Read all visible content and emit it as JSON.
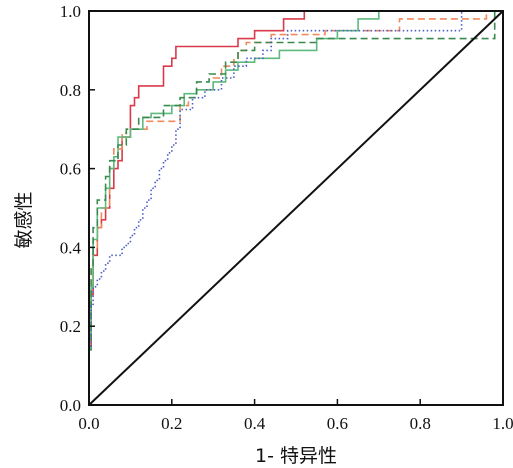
{
  "chart_data": {
    "type": "line",
    "title": "",
    "xlabel": "1- 特异性",
    "ylabel": "敏感性",
    "xlim": [
      0,
      1
    ],
    "ylim": [
      0,
      1
    ],
    "xticks": [
      "0.0",
      "0.2",
      "0.4",
      "0.6",
      "0.8",
      "1.0"
    ],
    "yticks": [
      "0.0",
      "0.2",
      "0.4",
      "0.6",
      "0.8",
      "1.0"
    ],
    "grid": false,
    "legend": "none",
    "series": [
      {
        "color": "#d93a4a",
        "style": "solid",
        "points": [
          [
            0,
            0
          ],
          [
            0,
            0.15
          ],
          [
            0.005,
            0.15
          ],
          [
            0.005,
            0.28
          ],
          [
            0.01,
            0.28
          ],
          [
            0.01,
            0.38
          ],
          [
            0.02,
            0.38
          ],
          [
            0.02,
            0.45
          ],
          [
            0.03,
            0.45
          ],
          [
            0.03,
            0.47
          ],
          [
            0.04,
            0.47
          ],
          [
            0.04,
            0.5
          ],
          [
            0.05,
            0.5
          ],
          [
            0.05,
            0.55
          ],
          [
            0.06,
            0.55
          ],
          [
            0.06,
            0.6
          ],
          [
            0.07,
            0.6
          ],
          [
            0.07,
            0.62
          ],
          [
            0.08,
            0.62
          ],
          [
            0.08,
            0.68
          ],
          [
            0.1,
            0.68
          ],
          [
            0.1,
            0.72
          ],
          [
            0.1,
            0.76
          ],
          [
            0.11,
            0.76
          ],
          [
            0.11,
            0.78
          ],
          [
            0.12,
            0.78
          ],
          [
            0.12,
            0.81
          ],
          [
            0.18,
            0.81
          ],
          [
            0.18,
            0.86
          ],
          [
            0.2,
            0.86
          ],
          [
            0.2,
            0.88
          ],
          [
            0.21,
            0.88
          ],
          [
            0.21,
            0.91
          ],
          [
            0.36,
            0.91
          ],
          [
            0.36,
            0.93
          ],
          [
            0.4,
            0.93
          ],
          [
            0.4,
            0.95
          ],
          [
            0.47,
            0.95
          ],
          [
            0.47,
            0.98
          ],
          [
            0.52,
            0.98
          ],
          [
            0.52,
            1
          ],
          [
            1,
            1
          ]
        ]
      },
      {
        "color": "#f08a5d",
        "style": "dashed",
        "points": [
          [
            0,
            0
          ],
          [
            0,
            0.16
          ],
          [
            0.005,
            0.16
          ],
          [
            0.005,
            0.3
          ],
          [
            0.01,
            0.3
          ],
          [
            0.01,
            0.4
          ],
          [
            0.02,
            0.4
          ],
          [
            0.02,
            0.45
          ],
          [
            0.03,
            0.45
          ],
          [
            0.03,
            0.5
          ],
          [
            0.05,
            0.5
          ],
          [
            0.05,
            0.6
          ],
          [
            0.06,
            0.6
          ],
          [
            0.06,
            0.65
          ],
          [
            0.08,
            0.65
          ],
          [
            0.08,
            0.69
          ],
          [
            0.09,
            0.69
          ],
          [
            0.09,
            0.7
          ],
          [
            0.14,
            0.7
          ],
          [
            0.14,
            0.72
          ],
          [
            0.22,
            0.72
          ],
          [
            0.22,
            0.76
          ],
          [
            0.24,
            0.76
          ],
          [
            0.24,
            0.78
          ],
          [
            0.26,
            0.78
          ],
          [
            0.26,
            0.8
          ],
          [
            0.3,
            0.8
          ],
          [
            0.3,
            0.83
          ],
          [
            0.32,
            0.83
          ],
          [
            0.32,
            0.86
          ],
          [
            0.35,
            0.86
          ],
          [
            0.35,
            0.88
          ],
          [
            0.36,
            0.88
          ],
          [
            0.36,
            0.9
          ],
          [
            0.38,
            0.9
          ],
          [
            0.38,
            0.92
          ],
          [
            0.44,
            0.92
          ],
          [
            0.44,
            0.94
          ],
          [
            0.57,
            0.94
          ],
          [
            0.57,
            0.95
          ],
          [
            0.75,
            0.95
          ],
          [
            0.75,
            0.98
          ],
          [
            0.96,
            0.98
          ],
          [
            0.96,
            1
          ],
          [
            1,
            1
          ]
        ]
      },
      {
        "color": "#5fba7d",
        "style": "solid",
        "points": [
          [
            0,
            0
          ],
          [
            0,
            0.18
          ],
          [
            0.005,
            0.18
          ],
          [
            0.005,
            0.3
          ],
          [
            0.01,
            0.3
          ],
          [
            0.01,
            0.42
          ],
          [
            0.02,
            0.42
          ],
          [
            0.02,
            0.5
          ],
          [
            0.04,
            0.5
          ],
          [
            0.04,
            0.55
          ],
          [
            0.05,
            0.55
          ],
          [
            0.05,
            0.6
          ],
          [
            0.06,
            0.6
          ],
          [
            0.06,
            0.63
          ],
          [
            0.07,
            0.63
          ],
          [
            0.07,
            0.68
          ],
          [
            0.1,
            0.68
          ],
          [
            0.1,
            0.7
          ],
          [
            0.13,
            0.7
          ],
          [
            0.13,
            0.73
          ],
          [
            0.15,
            0.73
          ],
          [
            0.15,
            0.74
          ],
          [
            0.2,
            0.74
          ],
          [
            0.2,
            0.76
          ],
          [
            0.23,
            0.76
          ],
          [
            0.23,
            0.79
          ],
          [
            0.26,
            0.79
          ],
          [
            0.26,
            0.8
          ],
          [
            0.3,
            0.8
          ],
          [
            0.3,
            0.82
          ],
          [
            0.33,
            0.82
          ],
          [
            0.33,
            0.85
          ],
          [
            0.36,
            0.85
          ],
          [
            0.36,
            0.87
          ],
          [
            0.4,
            0.87
          ],
          [
            0.4,
            0.88
          ],
          [
            0.46,
            0.88
          ],
          [
            0.46,
            0.9
          ],
          [
            0.55,
            0.9
          ],
          [
            0.55,
            0.93
          ],
          [
            0.6,
            0.93
          ],
          [
            0.6,
            0.95
          ],
          [
            0.65,
            0.95
          ],
          [
            0.65,
            0.98
          ],
          [
            0.7,
            0.98
          ],
          [
            0.7,
            1
          ],
          [
            1,
            1
          ]
        ]
      },
      {
        "color": "#3a8a50",
        "style": "dashed",
        "points": [
          [
            0,
            0
          ],
          [
            0,
            0.14
          ],
          [
            0.005,
            0.14
          ],
          [
            0.005,
            0.35
          ],
          [
            0.01,
            0.35
          ],
          [
            0.01,
            0.45
          ],
          [
            0.02,
            0.45
          ],
          [
            0.02,
            0.52
          ],
          [
            0.04,
            0.52
          ],
          [
            0.04,
            0.58
          ],
          [
            0.05,
            0.58
          ],
          [
            0.05,
            0.62
          ],
          [
            0.07,
            0.62
          ],
          [
            0.07,
            0.66
          ],
          [
            0.09,
            0.66
          ],
          [
            0.09,
            0.7
          ],
          [
            0.12,
            0.7
          ],
          [
            0.12,
            0.73
          ],
          [
            0.18,
            0.73
          ],
          [
            0.18,
            0.76
          ],
          [
            0.22,
            0.76
          ],
          [
            0.22,
            0.78
          ],
          [
            0.26,
            0.78
          ],
          [
            0.26,
            0.82
          ],
          [
            0.29,
            0.82
          ],
          [
            0.29,
            0.84
          ],
          [
            0.33,
            0.84
          ],
          [
            0.33,
            0.87
          ],
          [
            0.36,
            0.87
          ],
          [
            0.36,
            0.9
          ],
          [
            0.4,
            0.9
          ],
          [
            0.4,
            0.92
          ],
          [
            0.55,
            0.92
          ],
          [
            0.55,
            0.93
          ],
          [
            0.98,
            0.93
          ],
          [
            0.98,
            1
          ],
          [
            1,
            1
          ]
        ]
      },
      {
        "color": "#4b5cc4",
        "style": "dotted",
        "points": [
          [
            0,
            0
          ],
          [
            0,
            0.15
          ],
          [
            0.005,
            0.15
          ],
          [
            0.005,
            0.25
          ],
          [
            0.01,
            0.25
          ],
          [
            0.01,
            0.3
          ],
          [
            0.02,
            0.3
          ],
          [
            0.02,
            0.32
          ],
          [
            0.03,
            0.32
          ],
          [
            0.03,
            0.34
          ],
          [
            0.04,
            0.34
          ],
          [
            0.04,
            0.36
          ],
          [
            0.05,
            0.36
          ],
          [
            0.05,
            0.38
          ],
          [
            0.08,
            0.38
          ],
          [
            0.08,
            0.4
          ],
          [
            0.09,
            0.4
          ],
          [
            0.09,
            0.41
          ],
          [
            0.1,
            0.41
          ],
          [
            0.1,
            0.43
          ],
          [
            0.11,
            0.43
          ],
          [
            0.11,
            0.45
          ],
          [
            0.12,
            0.45
          ],
          [
            0.12,
            0.47
          ],
          [
            0.13,
            0.47
          ],
          [
            0.13,
            0.5
          ],
          [
            0.14,
            0.5
          ],
          [
            0.14,
            0.52
          ],
          [
            0.15,
            0.52
          ],
          [
            0.15,
            0.55
          ],
          [
            0.16,
            0.55
          ],
          [
            0.16,
            0.57
          ],
          [
            0.17,
            0.57
          ],
          [
            0.17,
            0.6
          ],
          [
            0.18,
            0.6
          ],
          [
            0.18,
            0.62
          ],
          [
            0.19,
            0.62
          ],
          [
            0.19,
            0.64
          ],
          [
            0.2,
            0.64
          ],
          [
            0.2,
            0.66
          ],
          [
            0.21,
            0.66
          ],
          [
            0.21,
            0.7
          ],
          [
            0.22,
            0.7
          ],
          [
            0.22,
            0.75
          ],
          [
            0.25,
            0.75
          ],
          [
            0.25,
            0.78
          ],
          [
            0.28,
            0.78
          ],
          [
            0.28,
            0.8
          ],
          [
            0.32,
            0.8
          ],
          [
            0.32,
            0.83
          ],
          [
            0.35,
            0.83
          ],
          [
            0.35,
            0.86
          ],
          [
            0.38,
            0.86
          ],
          [
            0.38,
            0.88
          ],
          [
            0.42,
            0.88
          ],
          [
            0.42,
            0.9
          ],
          [
            0.44,
            0.9
          ],
          [
            0.44,
            0.93
          ],
          [
            0.48,
            0.93
          ],
          [
            0.48,
            0.95
          ],
          [
            0.9,
            0.95
          ],
          [
            0.9,
            1
          ],
          [
            1,
            1
          ]
        ]
      },
      {
        "color": "#111111",
        "style": "solid",
        "points": [
          [
            0,
            0
          ],
          [
            1,
            1
          ]
        ]
      }
    ]
  }
}
